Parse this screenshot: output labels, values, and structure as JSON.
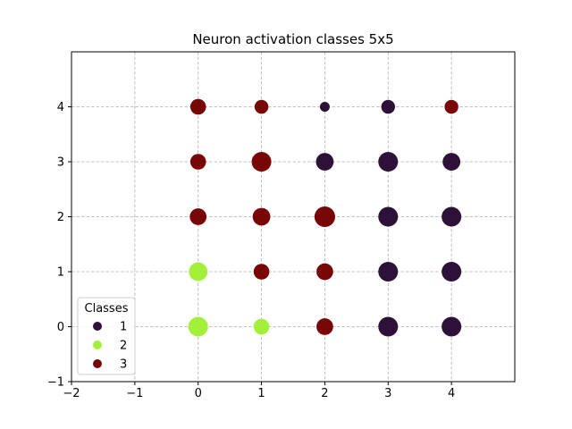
{
  "chart_data": {
    "type": "scatter",
    "title": "Neuron activation classes 5x5",
    "xlabel": "",
    "ylabel": "",
    "xlim": [
      -2,
      5
    ],
    "ylim": [
      -1,
      5
    ],
    "xticks": [
      -2,
      -1,
      0,
      1,
      2,
      3,
      4
    ],
    "yticks": [
      -1,
      0,
      1,
      2,
      3,
      4
    ],
    "grid": true,
    "grid_style": "dashed",
    "legend": {
      "title": "Classes",
      "position": "lower-left",
      "entries": [
        {
          "label": "1",
          "color": "#2d1138"
        },
        {
          "label": "2",
          "color": "#a2f03a"
        },
        {
          "label": "3",
          "color": "#780606"
        }
      ]
    },
    "class_colors": {
      "1": "#2d1138",
      "2": "#a2f03a",
      "3": "#780606"
    },
    "points": [
      {
        "x": 0,
        "y": 0,
        "class": 2,
        "size": 1.0
      },
      {
        "x": 1,
        "y": 0,
        "class": 2,
        "size": 0.8
      },
      {
        "x": 2,
        "y": 0,
        "class": 3,
        "size": 0.85
      },
      {
        "x": 3,
        "y": 0,
        "class": 1,
        "size": 1.0
      },
      {
        "x": 4,
        "y": 0,
        "class": 1,
        "size": 1.0
      },
      {
        "x": 0,
        "y": 1,
        "class": 2,
        "size": 0.95
      },
      {
        "x": 1,
        "y": 1,
        "class": 3,
        "size": 0.8
      },
      {
        "x": 2,
        "y": 1,
        "class": 3,
        "size": 0.85
      },
      {
        "x": 3,
        "y": 1,
        "class": 1,
        "size": 1.0
      },
      {
        "x": 4,
        "y": 1,
        "class": 1,
        "size": 1.0
      },
      {
        "x": 0,
        "y": 2,
        "class": 3,
        "size": 0.85
      },
      {
        "x": 1,
        "y": 2,
        "class": 3,
        "size": 0.9
      },
      {
        "x": 2,
        "y": 2,
        "class": 3,
        "size": 1.05
      },
      {
        "x": 3,
        "y": 2,
        "class": 1,
        "size": 1.0
      },
      {
        "x": 4,
        "y": 2,
        "class": 1,
        "size": 1.0
      },
      {
        "x": 0,
        "y": 3,
        "class": 3,
        "size": 0.8
      },
      {
        "x": 1,
        "y": 3,
        "class": 3,
        "size": 1.0
      },
      {
        "x": 2,
        "y": 3,
        "class": 1,
        "size": 0.9
      },
      {
        "x": 3,
        "y": 3,
        "class": 1,
        "size": 1.0
      },
      {
        "x": 4,
        "y": 3,
        "class": 1,
        "size": 0.9
      },
      {
        "x": 0,
        "y": 4,
        "class": 3,
        "size": 0.8
      },
      {
        "x": 1,
        "y": 4,
        "class": 3,
        "size": 0.7
      },
      {
        "x": 2,
        "y": 4,
        "class": 1,
        "size": 0.5
      },
      {
        "x": 3,
        "y": 4,
        "class": 1,
        "size": 0.7
      },
      {
        "x": 4,
        "y": 4,
        "class": 3,
        "size": 0.7
      }
    ]
  }
}
